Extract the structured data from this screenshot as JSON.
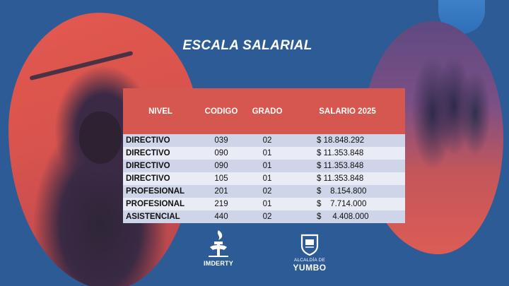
{
  "slide": {
    "title": "ESCALA SALARIAL"
  },
  "table": {
    "headers": {
      "nivel": "NIVEL",
      "codigo": "CODIGO",
      "grado": "GRADO",
      "salario": "SALARIO 2025"
    },
    "rows": [
      {
        "nivel": "DIRECTIVO",
        "codigo": "039",
        "grado": "02",
        "salario": "$ 18.848.292"
      },
      {
        "nivel": "DIRECTIVO",
        "codigo": "090",
        "grado": "01",
        "salario": "$ 11.353.848"
      },
      {
        "nivel": "DIRECTIVO",
        "codigo": "090",
        "grado": "01",
        "salario": "$ 11.353.848"
      },
      {
        "nivel": "DIRECTIVO",
        "codigo": "105",
        "grado": "01",
        "salario": "$ 11.353.848"
      },
      {
        "nivel": "PROFESIONAL",
        "codigo": "201",
        "grado": "02",
        "salario": "$    8.154.800"
      },
      {
        "nivel": "PROFESIONAL",
        "codigo": "219",
        "grado": "01",
        "salario": "$    7.714.000"
      },
      {
        "nivel": "ASISTENCIAL",
        "codigo": "440",
        "grado": "02",
        "salario": "$     4.408.000"
      }
    ]
  },
  "logos": {
    "imderty": {
      "icon": "imderty-torch-logo",
      "label": "IMDERTY"
    },
    "yumbo": {
      "icon": "yumbo-shield-logo",
      "small": "ALCALDÍA DE",
      "big": "YUMBO"
    }
  },
  "colors": {
    "background": "#2d5b96",
    "header_red": "#d6574f",
    "row_dark": "#cfd5e8",
    "row_light": "#e9ecf5"
  }
}
